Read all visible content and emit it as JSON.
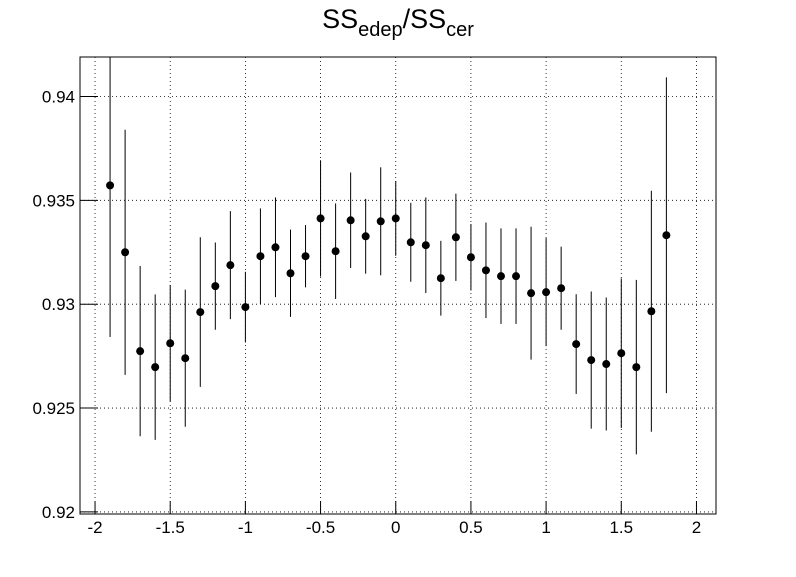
{
  "chart_data": {
    "type": "scatter",
    "title": [
      "SS",
      "edep",
      "/SS",
      "cer"
    ],
    "x": [
      -1.9,
      -1.8,
      -1.7,
      -1.6,
      -1.5,
      -1.4,
      -1.3,
      -1.2,
      -1.1,
      -1.0,
      -0.9,
      -0.8,
      -0.7,
      -0.6,
      -0.5,
      -0.4,
      -0.3,
      -0.2,
      -0.1,
      0,
      0.1,
      0.2,
      0.3,
      0.4,
      0.5,
      0.6,
      0.7,
      0.8,
      0.9,
      1.0,
      1.1,
      1.2,
      1.3,
      1.4,
      1.5,
      1.6,
      1.7,
      1.8
    ],
    "y": [
      0.93572,
      0.9325,
      0.92774,
      0.92697,
      0.92812,
      0.9274,
      0.92962,
      0.93087,
      0.93188,
      0.92986,
      0.93231,
      0.93274,
      0.93149,
      0.93231,
      0.93413,
      0.93255,
      0.93404,
      0.93327,
      0.93399,
      0.93413,
      0.93298,
      0.93284,
      0.93125,
      0.93322,
      0.93226,
      0.93163,
      0.93135,
      0.93135,
      0.93053,
      0.93058,
      0.93077,
      0.92808,
      0.92731,
      0.92712,
      0.92764,
      0.92697,
      0.92966,
      0.93332
    ],
    "errors": [
      0.0073,
      0.0059,
      0.0041,
      0.0035,
      0.0028,
      0.0033,
      0.0036,
      0.0021,
      0.0026,
      0.0017,
      0.0023,
      0.0024,
      0.0021,
      0.0015,
      0.0028,
      0.0023,
      0.0023,
      0.0018,
      0.0026,
      0.0018,
      0.0019,
      0.0023,
      0.0018,
      0.0021,
      0.0016,
      0.0023,
      0.0023,
      0.0023,
      0.0032,
      0.0026,
      0.002,
      0.0024,
      0.0033,
      0.0032,
      0.0036,
      0.0042,
      0.0058,
      0.0076
    ],
    "color": "#000000",
    "xlim": [
      -2.1,
      2.13
    ],
    "xticks": [
      -2,
      -1.5,
      -1,
      -0.5,
      0,
      0.5,
      1,
      1.5,
      2
    ],
    "ylim": [
      0.9199,
      0.9419
    ],
    "yticks": [
      0.92,
      0.925,
      0.93,
      0.935,
      0.94
    ],
    "grid": true
  }
}
